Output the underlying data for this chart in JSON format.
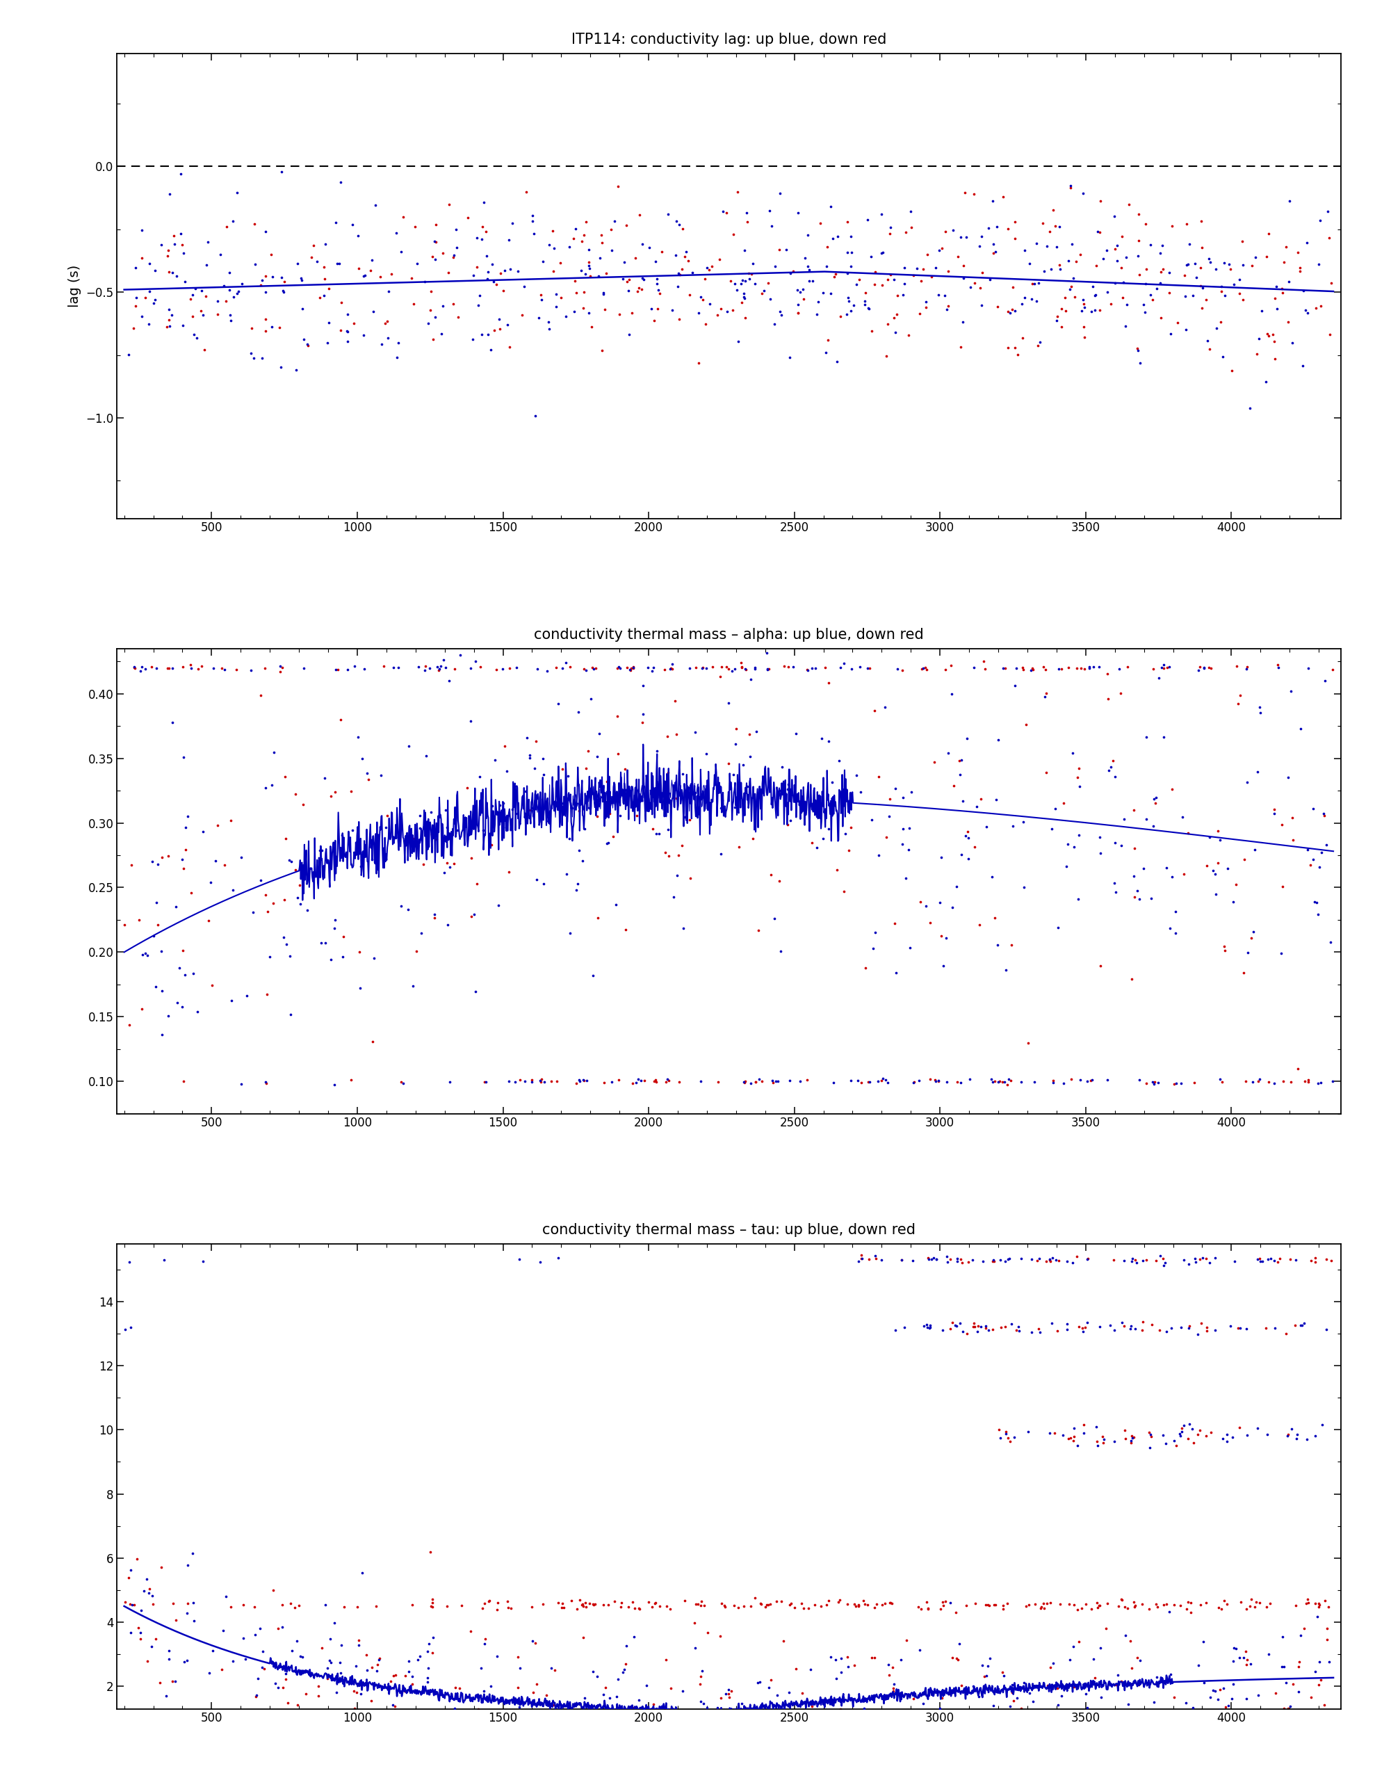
{
  "title1": "ITP114: conductivity lag: up blue, down red",
  "title2": "conductivity thermal mass – alpha: up blue, down red",
  "title3": "conductivity thermal mass – tau: up blue, down red",
  "ylabel1": "lag (s)",
  "xrange": [
    175,
    4375
  ],
  "plot1_ylim": [
    -1.4,
    0.45
  ],
  "plot2_ylim": [
    0.075,
    0.435
  ],
  "plot3_ylim": [
    1.3,
    15.8
  ],
  "blue_color": "#0000bb",
  "red_color": "#cc0000",
  "curve_color": "#0000bb",
  "bg_color": "#ffffff",
  "dot_size": 7,
  "seed": 42
}
